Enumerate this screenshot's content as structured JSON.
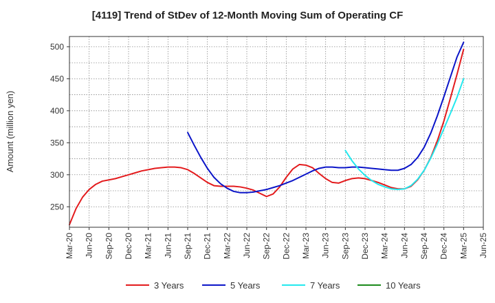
{
  "chart_data": {
    "type": "line",
    "title": "[4119]  Trend of StDev of 12-Month Moving Sum of Operating CF",
    "xlabel": "",
    "ylabel": "Amount (million yen)",
    "ylim": [
      218,
      516
    ],
    "y_ticks": [
      250,
      300,
      350,
      400,
      450,
      500
    ],
    "x_ticks": [
      "Mar-20",
      "Jun-20",
      "Sep-20",
      "Dec-20",
      "Mar-21",
      "Jun-21",
      "Sep-21",
      "Dec-21",
      "Mar-22",
      "Jun-22",
      "Sep-22",
      "Dec-22",
      "Mar-23",
      "Jun-23",
      "Sep-23",
      "Dec-23",
      "Mar-24",
      "Jun-24",
      "Sep-24",
      "Dec-24",
      "Mar-25",
      "Jun-25"
    ],
    "grid": true,
    "legend_position": "bottom",
    "series": [
      {
        "name": "3 Years",
        "color": "#e31a1c",
        "start_month": "Mar-20",
        "values": [
          222,
          247,
          265,
          277,
          285,
          290,
          292,
          294,
          297,
          300,
          303,
          306,
          308,
          310,
          311,
          312,
          312,
          311,
          308,
          302,
          295,
          288,
          283,
          282,
          282,
          282,
          281,
          279,
          276,
          271,
          266,
          270,
          281,
          296,
          309,
          316,
          315,
          311,
          302,
          294,
          288,
          287,
          291,
          294,
          295,
          294,
          291,
          288,
          284,
          280,
          278,
          278,
          282,
          292,
          307,
          327,
          353,
          384,
          420,
          457,
          496
        ]
      },
      {
        "name": "5 Years",
        "color": "#0a14c8",
        "start_month": "Sep-21",
        "values": [
          366,
          346,
          327,
          310,
          296,
          286,
          279,
          274,
          272,
          272,
          273,
          275,
          277,
          280,
          283,
          287,
          291,
          296,
          301,
          306,
          310,
          312,
          312,
          311,
          311,
          312,
          312,
          311,
          310,
          309,
          308,
          307,
          307,
          310,
          316,
          327,
          343,
          365,
          392,
          422,
          453,
          484,
          507
        ]
      },
      {
        "name": "7 Years",
        "color": "#22e8ee",
        "start_month": "Sep-23",
        "values": [
          338,
          322,
          309,
          299,
          291,
          285,
          281,
          278,
          277,
          278,
          283,
          293,
          307,
          326,
          348,
          372,
          396,
          421,
          450
        ]
      },
      {
        "name": "10 Years",
        "color": "#1a8a1a",
        "start_month": "Mar-20",
        "values": []
      }
    ]
  }
}
